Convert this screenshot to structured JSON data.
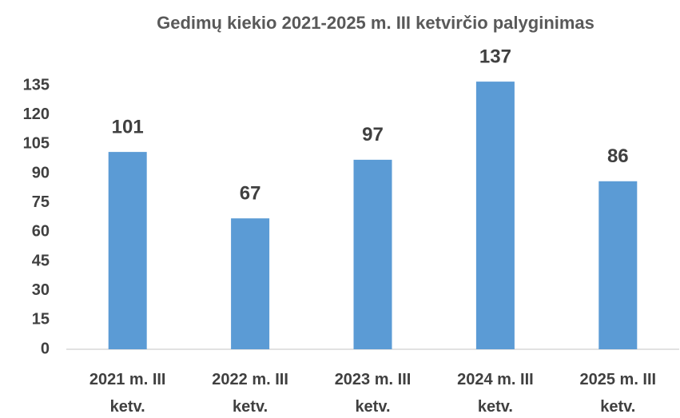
{
  "chart_data": {
    "type": "bar",
    "title": "Gedimų kiekio 2021-2025 m. III ketvirčio palyginimas",
    "categories": [
      "2021 m. III ketv.",
      "2022 m. III ketv.",
      "2023 m. III ketv.",
      "2024 m. III ketv.",
      "2025 m. III ketv."
    ],
    "values": [
      101,
      67,
      97,
      137,
      86
    ],
    "color": "#5b9bd5",
    "ylim": [
      0,
      140
    ],
    "yticks": [
      0,
      15,
      30,
      45,
      60,
      75,
      90,
      105,
      120,
      135
    ],
    "grid": false
  }
}
